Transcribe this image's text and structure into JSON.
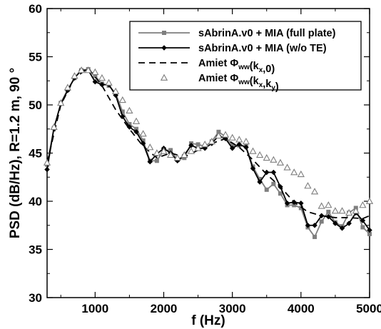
{
  "chart_data": {
    "type": "line",
    "xlabel": "f (Hz)",
    "ylabel": "PSD (dB/Hz), R=1.2 m, 90 °",
    "xlim": [
      300,
      5000
    ],
    "ylim": [
      30,
      60
    ],
    "xticks": [
      1000,
      2000,
      3000,
      4000,
      5000
    ],
    "yticks": [
      30,
      35,
      40,
      45,
      50,
      55,
      60
    ],
    "grid": false,
    "legend_position": "top-right",
    "series": [
      {
        "name_main": "sAbrinA.v0 + MIA (full plate)",
        "color": "#7f7f7f",
        "marker": "square",
        "line": "solid",
        "x": [
          300,
          400,
          500,
          600,
          700,
          800,
          900,
          1000,
          1100,
          1200,
          1300,
          1400,
          1500,
          1600,
          1700,
          1800,
          1900,
          2000,
          2100,
          2200,
          2300,
          2400,
          2500,
          2600,
          2700,
          2800,
          2900,
          3000,
          3100,
          3200,
          3300,
          3400,
          3500,
          3600,
          3700,
          3800,
          3900,
          4000,
          4100,
          4200,
          4300,
          4400,
          4500,
          4600,
          4700,
          4800,
          4900,
          5000
        ],
        "values": [
          43.8,
          47.6,
          50.2,
          51.6,
          52.8,
          53.6,
          53.7,
          53.0,
          52.2,
          52.0,
          51.2,
          49.3,
          48.0,
          47.5,
          46.3,
          44.2,
          44.2,
          45.3,
          45.3,
          44.3,
          44.5,
          46.0,
          45.9,
          45.7,
          46.2,
          47.2,
          46.7,
          45.8,
          45.8,
          45.7,
          43.6,
          42.3,
          41.2,
          41.8,
          40.8,
          39.6,
          39.6,
          39.3,
          37.3,
          36.3,
          37.9,
          38.9,
          37.8,
          37.4,
          38.8,
          39.3,
          37.3,
          36.6
        ]
      },
      {
        "name_main": "sAbrinA.v0 + MIA (w/o TE)",
        "color": "#000000",
        "marker": "diamond",
        "line": "solid",
        "x": [
          300,
          400,
          500,
          600,
          700,
          800,
          900,
          1000,
          1100,
          1200,
          1300,
          1400,
          1500,
          1600,
          1700,
          1800,
          1900,
          2000,
          2100,
          2200,
          2300,
          2400,
          2500,
          2600,
          2700,
          2800,
          2900,
          3000,
          3100,
          3200,
          3300,
          3400,
          3500,
          3600,
          3700,
          3800,
          3900,
          4000,
          4100,
          4200,
          4300,
          4400,
          4500,
          4600,
          4700,
          4800,
          4900,
          5000
        ],
        "values": [
          43.3,
          47.6,
          50.1,
          51.5,
          52.8,
          53.6,
          53.6,
          52.4,
          52.1,
          52.1,
          51.0,
          48.8,
          47.7,
          47.2,
          46.0,
          44.1,
          44.9,
          45.5,
          45.0,
          44.2,
          44.8,
          45.8,
          45.5,
          45.5,
          46.0,
          46.8,
          46.5,
          45.5,
          45.9,
          45.6,
          43.4,
          42.0,
          43.0,
          43.0,
          41.5,
          39.8,
          39.9,
          39.8,
          37.5,
          37.5,
          38.5,
          38.4,
          37.7,
          37.2,
          37.7,
          38.8,
          38.0,
          37.0
        ]
      },
      {
        "name_main": "Amiet Φ",
        "name_sub": "ww",
        "name_tail": "(k",
        "name_sub2": "x",
        "name_end": ",0)",
        "color": "#000000",
        "marker": "none",
        "line": "dashed",
        "x": [
          300,
          500,
          700,
          900,
          1100,
          1300,
          1500,
          1700,
          1900,
          2100,
          2300,
          2500,
          2700,
          2900,
          3100,
          3300,
          3500,
          3700,
          3900,
          4100,
          4300,
          4500,
          4700,
          4900,
          5000
        ],
        "values": [
          44.0,
          50.0,
          52.8,
          53.8,
          52.0,
          49.5,
          47.5,
          45.7,
          44.5,
          45.0,
          44.6,
          45.3,
          46.0,
          46.5,
          45.6,
          44.3,
          42.8,
          41.5,
          39.9,
          38.9,
          38.5,
          38.3,
          38.3,
          38.2,
          38.5
        ]
      },
      {
        "name_main": "Amiet Φ",
        "name_sub": "ww",
        "name_tail": "(k",
        "name_sub2": "x",
        "name_end": ",k",
        "name_sub3": "y",
        "name_end2": ")",
        "color": "#7f7f7f",
        "marker": "triangle",
        "line": "none",
        "x": [
          300,
          400,
          500,
          600,
          700,
          800,
          900,
          1000,
          1100,
          1200,
          1300,
          1400,
          1500,
          1600,
          1700,
          1800,
          1900,
          2000,
          2100,
          2200,
          2300,
          2400,
          2500,
          2600,
          2700,
          2800,
          2900,
          3000,
          3100,
          3200,
          3300,
          3400,
          3500,
          3600,
          3700,
          3800,
          3900,
          4000,
          4100,
          4200,
          4300,
          4400,
          4500,
          4600,
          4700,
          4800,
          4900,
          5000
        ],
        "values": [
          44.0,
          47.7,
          50.2,
          51.8,
          53.0,
          53.6,
          53.6,
          53.4,
          52.8,
          52.3,
          51.4,
          50.5,
          49.4,
          48.3,
          47.0,
          45.6,
          45.0,
          45.2,
          44.8,
          44.5,
          44.8,
          45.2,
          45.5,
          45.9,
          46.2,
          46.8,
          46.9,
          46.6,
          46.4,
          46.2,
          45.2,
          44.8,
          44.5,
          44.3,
          44.0,
          43.5,
          43.0,
          42.8,
          41.6,
          41.0,
          39.5,
          39.6,
          39.0,
          39.0,
          38.8,
          39.0,
          39.6,
          40.0
        ]
      }
    ]
  }
}
